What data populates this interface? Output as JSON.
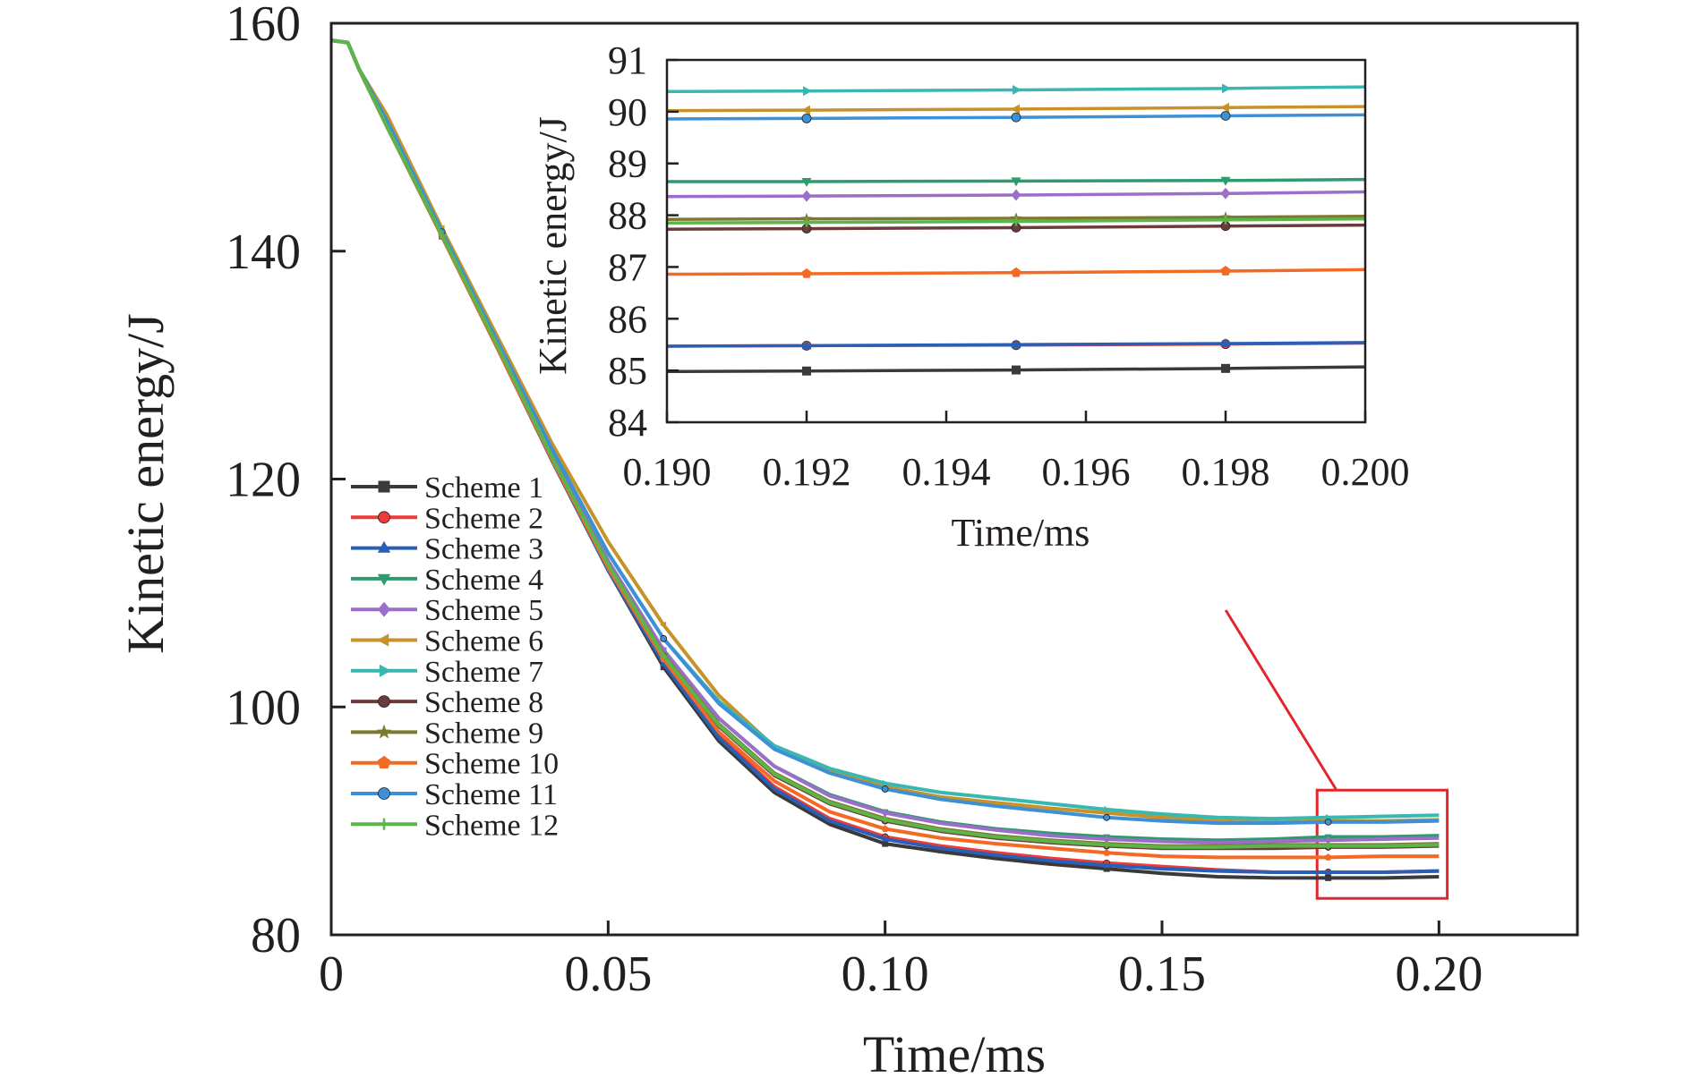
{
  "chart_data": [
    {
      "type": "line",
      "xlabel": "Time/ms",
      "ylabel": "Kinetic energy/J",
      "xlim": [
        0,
        0.225
      ],
      "ylim": [
        80,
        160
      ],
      "xticks": [
        0,
        0.05,
        0.1,
        0.15,
        0.2
      ],
      "xtick_labels": [
        "0",
        "0.05",
        "0.10",
        "0.15",
        "0.20"
      ],
      "yticks": [
        80,
        100,
        120,
        140,
        160
      ],
      "ytick_labels": [
        "80",
        "100",
        "120",
        "140",
        "160"
      ],
      "legend_position": "left-bottom",
      "grid": false,
      "x": [
        0,
        0.003,
        0.005,
        0.01,
        0.02,
        0.03,
        0.04,
        0.05,
        0.06,
        0.07,
        0.08,
        0.09,
        0.1,
        0.11,
        0.12,
        0.13,
        0.14,
        0.15,
        0.16,
        0.17,
        0.18,
        0.19,
        0.2
      ],
      "series": [
        {
          "name": "Scheme 1",
          "color": "#3a3a3a",
          "marker": "square",
          "values": [
            158.5,
            158.3,
            156.0,
            151.0,
            141.3,
            131.5,
            121.5,
            112.0,
            103.5,
            97.0,
            92.5,
            89.7,
            88.0,
            87.3,
            86.7,
            86.2,
            85.8,
            85.4,
            85.1,
            85.0,
            85.0,
            85.0,
            85.1
          ]
        },
        {
          "name": "Scheme 2",
          "color": "#ed3b35",
          "marker": "circle",
          "values": [
            158.5,
            158.3,
            156.0,
            151.0,
            141.3,
            131.5,
            121.5,
            112.0,
            104.0,
            97.5,
            93.0,
            90.2,
            88.6,
            87.8,
            87.2,
            86.7,
            86.3,
            86.0,
            85.7,
            85.5,
            85.5,
            85.5,
            85.6
          ]
        },
        {
          "name": "Scheme 3",
          "color": "#2a5fb8",
          "marker": "triangle-up",
          "values": [
            158.5,
            158.3,
            156.0,
            151.0,
            141.3,
            131.5,
            121.5,
            112.0,
            103.8,
            97.3,
            92.8,
            90.0,
            88.4,
            87.6,
            87.0,
            86.5,
            86.1,
            85.8,
            85.6,
            85.5,
            85.5,
            85.5,
            85.6
          ]
        },
        {
          "name": "Scheme 4",
          "color": "#2e9a6e",
          "marker": "triangle-down",
          "values": [
            158.5,
            158.3,
            156.0,
            151.0,
            141.5,
            131.9,
            122.0,
            112.8,
            105.0,
            99.0,
            94.8,
            92.3,
            90.8,
            89.9,
            89.3,
            88.9,
            88.6,
            88.4,
            88.3,
            88.4,
            88.6,
            88.6,
            88.7
          ]
        },
        {
          "name": "Scheme 5",
          "color": "#9b6fc9",
          "marker": "diamond",
          "values": [
            158.5,
            158.3,
            156.0,
            151.0,
            141.5,
            131.9,
            122.0,
            112.8,
            105.0,
            99.0,
            94.8,
            92.2,
            90.7,
            89.8,
            89.2,
            88.7,
            88.4,
            88.2,
            88.1,
            88.2,
            88.3,
            88.4,
            88.5
          ]
        },
        {
          "name": "Scheme 6",
          "color": "#c8922b",
          "marker": "triangle-left",
          "values": [
            158.5,
            158.3,
            156.0,
            152.0,
            142.0,
            132.5,
            123.0,
            114.5,
            107.2,
            101.0,
            96.5,
            94.5,
            93.0,
            92.1,
            91.6,
            91.1,
            90.7,
            90.3,
            90.0,
            89.9,
            90.0,
            90.0,
            90.1
          ]
        },
        {
          "name": "Scheme 7",
          "color": "#38b8b0",
          "marker": "triangle-right",
          "values": [
            158.5,
            158.3,
            156.0,
            151.5,
            141.7,
            132.1,
            122.5,
            113.5,
            106.0,
            100.5,
            96.6,
            94.6,
            93.3,
            92.5,
            92.0,
            91.5,
            91.0,
            90.6,
            90.3,
            90.2,
            90.3,
            90.4,
            90.5
          ]
        },
        {
          "name": "Scheme 8",
          "color": "#6e3b3b",
          "marker": "circle",
          "values": [
            158.5,
            158.3,
            156.0,
            151.0,
            141.4,
            131.7,
            121.8,
            112.5,
            104.5,
            98.3,
            94.0,
            91.5,
            90.0,
            89.1,
            88.5,
            88.1,
            87.8,
            87.6,
            87.6,
            87.6,
            87.7,
            87.7,
            87.8
          ]
        },
        {
          "name": "Scheme 9",
          "color": "#7d7a2f",
          "marker": "star",
          "values": [
            158.5,
            158.3,
            156.0,
            151.0,
            141.4,
            131.7,
            121.8,
            112.5,
            104.6,
            98.5,
            94.2,
            91.7,
            90.2,
            89.3,
            88.7,
            88.3,
            88.0,
            87.8,
            87.8,
            87.9,
            87.9,
            87.9,
            88.0
          ]
        },
        {
          "name": "Scheme 10",
          "color": "#f26a23",
          "marker": "pentagon",
          "values": [
            158.5,
            158.3,
            156.0,
            151.0,
            141.3,
            131.5,
            121.6,
            112.2,
            104.2,
            97.8,
            93.5,
            90.8,
            89.3,
            88.5,
            88.0,
            87.6,
            87.2,
            86.9,
            86.8,
            86.8,
            86.8,
            86.9,
            86.9
          ]
        },
        {
          "name": "Scheme 11",
          "color": "#3d8fd6",
          "marker": "circle",
          "values": [
            158.5,
            158.3,
            156.0,
            151.5,
            141.7,
            132.1,
            122.5,
            113.5,
            106.0,
            100.3,
            96.3,
            94.2,
            92.8,
            91.9,
            91.3,
            90.8,
            90.3,
            90.0,
            89.8,
            89.8,
            89.9,
            89.9,
            90.0
          ]
        },
        {
          "name": "Scheme 12",
          "color": "#5cb548",
          "marker": "plus",
          "values": [
            158.5,
            158.3,
            156.0,
            151.0,
            141.4,
            131.7,
            121.8,
            112.5,
            104.5,
            98.4,
            94.1,
            91.6,
            90.1,
            89.2,
            88.6,
            88.2,
            87.9,
            87.7,
            87.7,
            87.8,
            87.8,
            87.8,
            87.9
          ]
        }
      ]
    },
    {
      "type": "line",
      "xlabel": "Time/ms",
      "ylabel": "Kinetic energy/J",
      "xlim": [
        0.19,
        0.2
      ],
      "ylim": [
        84,
        91
      ],
      "xticks": [
        0.19,
        0.192,
        0.194,
        0.196,
        0.198,
        0.2
      ],
      "xtick_labels": [
        "0.190",
        "0.192",
        "0.194",
        "0.196",
        "0.198",
        "0.200"
      ],
      "yticks": [
        84,
        85,
        86,
        87,
        88,
        89,
        90,
        91
      ],
      "ytick_labels": [
        "84",
        "85",
        "86",
        "87",
        "88",
        "89",
        "90",
        "91"
      ],
      "x": [
        0.19,
        0.192,
        0.195,
        0.198,
        0.2
      ],
      "series": [
        {
          "name": "Scheme 1",
          "color": "#3a3a3a",
          "marker": "square",
          "values": [
            84.98,
            84.99,
            85.01,
            85.04,
            85.07
          ]
        },
        {
          "name": "Scheme 2",
          "color": "#ed3b35",
          "marker": "circle",
          "values": [
            85.47,
            85.48,
            85.49,
            85.51,
            85.53
          ]
        },
        {
          "name": "Scheme 3",
          "color": "#2a5fb8",
          "marker": "triangle-up",
          "values": [
            85.47,
            85.48,
            85.5,
            85.52,
            85.54
          ]
        },
        {
          "name": "Scheme 4",
          "color": "#2e9a6e",
          "marker": "triangle-down",
          "values": [
            88.65,
            88.65,
            88.66,
            88.67,
            88.69
          ]
        },
        {
          "name": "Scheme 5",
          "color": "#9b6fc9",
          "marker": "diamond",
          "values": [
            88.36,
            88.37,
            88.39,
            88.42,
            88.45
          ]
        },
        {
          "name": "Scheme 6",
          "color": "#c8922b",
          "marker": "triangle-left",
          "values": [
            90.02,
            90.03,
            90.05,
            90.08,
            90.1
          ]
        },
        {
          "name": "Scheme 7",
          "color": "#38b8b0",
          "marker": "triangle-right",
          "values": [
            90.39,
            90.4,
            90.42,
            90.45,
            90.48
          ]
        },
        {
          "name": "Scheme 8",
          "color": "#6e3b3b",
          "marker": "circle",
          "values": [
            87.73,
            87.74,
            87.76,
            87.79,
            87.81
          ]
        },
        {
          "name": "Scheme 9",
          "color": "#7d7a2f",
          "marker": "star",
          "values": [
            87.92,
            87.93,
            87.94,
            87.96,
            87.98
          ]
        },
        {
          "name": "Scheme 10",
          "color": "#f26a23",
          "marker": "pentagon",
          "values": [
            86.86,
            86.87,
            86.89,
            86.92,
            86.95
          ]
        },
        {
          "name": "Scheme 11",
          "color": "#3d8fd6",
          "marker": "circle",
          "values": [
            89.86,
            89.87,
            89.89,
            89.92,
            89.94
          ]
        },
        {
          "name": "Scheme 12",
          "color": "#5cb548",
          "marker": "plus",
          "values": [
            87.85,
            87.86,
            87.88,
            87.91,
            87.93
          ]
        }
      ]
    }
  ]
}
